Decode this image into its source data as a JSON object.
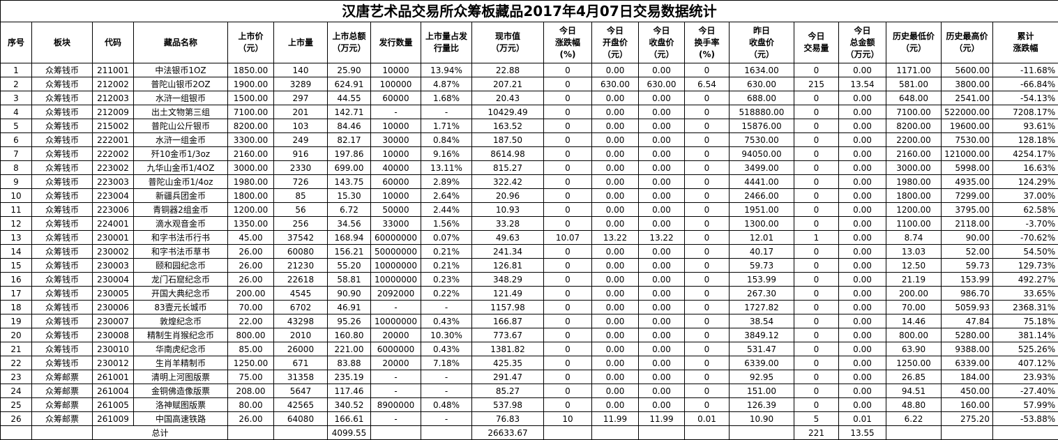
{
  "title": "汉唐艺术品交易所众筹板藏品2017年4月07日交易数据统计",
  "headers": [
    [
      "序号"
    ],
    [
      "板块"
    ],
    [
      "代码"
    ],
    [
      "藏品名称"
    ],
    [
      "上市价",
      "（元）"
    ],
    [
      "上市量"
    ],
    [
      "上市总额",
      "（万元）"
    ],
    [
      "发行数量"
    ],
    [
      "上市量占发",
      "行量比"
    ],
    [
      "现市值",
      "（万元）"
    ],
    [
      "今日",
      "涨跌幅",
      "(%)"
    ],
    [
      "今日",
      "开盘价",
      "（元）"
    ],
    [
      "今日",
      "收盘价",
      "（元）"
    ],
    [
      "今日",
      "换手率",
      "(%)"
    ],
    [
      "昨日",
      "收盘价",
      "（元）"
    ],
    [
      "今日",
      "交易量"
    ],
    [
      "今日",
      "总金额",
      "（万元）"
    ],
    [
      "历史最低价",
      "（元）"
    ],
    [
      "历史最高价",
      "（元）"
    ],
    [
      "累计",
      "涨跌幅"
    ]
  ],
  "rows": [
    [
      "1",
      "众筹钱币",
      "211001",
      "中法银币1OZ",
      "1850.00",
      "140",
      "25.90",
      "10000",
      "13.94%",
      "22.88",
      "0",
      "0.00",
      "0.00",
      "0",
      "1634.00",
      "0",
      "0.00",
      "1171.00",
      "5600.00",
      "-11.68%"
    ],
    [
      "2",
      "众筹钱币",
      "212002",
      "普陀山银币2OZ",
      "1900.00",
      "3289",
      "624.91",
      "100000",
      "4.87%",
      "207.21",
      "0",
      "630.00",
      "630.00",
      "6.54",
      "630.00",
      "215",
      "13.54",
      "581.00",
      "3800.00",
      "-66.84%"
    ],
    [
      "3",
      "众筹钱币",
      "212003",
      "水浒一组银币",
      "1500.00",
      "297",
      "44.55",
      "60000",
      "1.68%",
      "20.43",
      "0",
      "0.00",
      "0.00",
      "0",
      "688.00",
      "0",
      "0.00",
      "648.00",
      "2541.00",
      "-54.13%"
    ],
    [
      "4",
      "众筹钱币",
      "212009",
      "出土文物第三组",
      "7100.00",
      "201",
      "142.71",
      "-",
      "-",
      "10429.49",
      "0",
      "0.00",
      "0.00",
      "0",
      "518880.00",
      "0",
      "0.00",
      "7100.00",
      "522000.00",
      "7208.17%"
    ],
    [
      "5",
      "众筹钱币",
      "215002",
      "普陀山公斤银币",
      "8200.00",
      "103",
      "84.46",
      "10000",
      "1.71%",
      "163.52",
      "0",
      "0.00",
      "0.00",
      "0",
      "15876.00",
      "0",
      "0.00",
      "8200.00",
      "19600.00",
      "93.61%"
    ],
    [
      "6",
      "众筹钱币",
      "222001",
      "水浒一组金币",
      "3300.00",
      "249",
      "82.17",
      "30000",
      "0.84%",
      "187.50",
      "0",
      "0.00",
      "0.00",
      "0",
      "7530.00",
      "0",
      "0.00",
      "2200.00",
      "7530.00",
      "128.18%"
    ],
    [
      "7",
      "众筹钱币",
      "222002",
      "歼10金币1/3oz",
      "2160.00",
      "916",
      "197.86",
      "10000",
      "9.16%",
      "8614.98",
      "0",
      "0.00",
      "0.00",
      "0",
      "94050.00",
      "0",
      "0.00",
      "2160.00",
      "121000.00",
      "4254.17%"
    ],
    [
      "8",
      "众筹钱币",
      "223002",
      "九华山金币1/4OZ",
      "3000.00",
      "2330",
      "699.00",
      "40000",
      "13.11%",
      "815.27",
      "0",
      "0.00",
      "0.00",
      "0",
      "3499.00",
      "0",
      "0.00",
      "3000.00",
      "5998.00",
      "16.63%"
    ],
    [
      "9",
      "众筹钱币",
      "223003",
      "普陀山金币1/4oz",
      "1980.00",
      "726",
      "143.75",
      "60000",
      "2.89%",
      "322.42",
      "0",
      "0.00",
      "0.00",
      "0",
      "4441.00",
      "0",
      "0.00",
      "1980.00",
      "4935.00",
      "124.29%"
    ],
    [
      "10",
      "众筹钱币",
      "223004",
      "新疆兵团金币",
      "1800.00",
      "85",
      "15.30",
      "10000",
      "2.64%",
      "20.96",
      "0",
      "0.00",
      "0.00",
      "0",
      "2466.00",
      "0",
      "0.00",
      "1800.00",
      "7299.00",
      "37.00%"
    ],
    [
      "11",
      "众筹钱币",
      "223006",
      "青铜器2组金币",
      "1200.00",
      "56",
      "6.72",
      "50000",
      "2.44%",
      "10.93",
      "0",
      "0.00",
      "0.00",
      "0",
      "1951.00",
      "0",
      "0.00",
      "1200.00",
      "3795.00",
      "62.58%"
    ],
    [
      "12",
      "众筹钱币",
      "224001",
      "滴水观音金币",
      "1350.00",
      "256",
      "34.56",
      "33000",
      "1.56%",
      "33.28",
      "0",
      "0.00",
      "0.00",
      "0",
      "1300.00",
      "0",
      "0.00",
      "1100.00",
      "2118.00",
      "-3.70%"
    ],
    [
      "13",
      "众筹钱币",
      "230001",
      "和字书法币行书",
      "45.00",
      "37542",
      "168.94",
      "60000000",
      "0.07%",
      "49.63",
      "10.07",
      "13.22",
      "13.22",
      "0",
      "12.01",
      "1",
      "0.00",
      "8.74",
      "90.00",
      "-70.62%"
    ],
    [
      "14",
      "众筹钱币",
      "230002",
      "和字书法币草书",
      "26.00",
      "60080",
      "156.21",
      "50000000",
      "0.21%",
      "241.34",
      "0",
      "0.00",
      "0.00",
      "0",
      "40.17",
      "0",
      "0.00",
      "13.03",
      "52.00",
      "54.50%"
    ],
    [
      "15",
      "众筹钱币",
      "230003",
      "颐和园纪念币",
      "26.00",
      "21230",
      "55.20",
      "10000000",
      "0.21%",
      "126.81",
      "0",
      "0.00",
      "0.00",
      "0",
      "59.73",
      "0",
      "0.00",
      "12.50",
      "59.73",
      "129.73%"
    ],
    [
      "16",
      "众筹钱币",
      "230004",
      "龙门石窟纪念币",
      "26.00",
      "22618",
      "58.81",
      "10000000",
      "0.23%",
      "348.29",
      "0",
      "0.00",
      "0.00",
      "0",
      "153.99",
      "0",
      "0.00",
      "21.19",
      "153.99",
      "492.27%"
    ],
    [
      "17",
      "众筹钱币",
      "230005",
      "开国大典纪念币",
      "200.00",
      "4545",
      "90.90",
      "2092000",
      "0.22%",
      "121.49",
      "0",
      "0.00",
      "0.00",
      "0",
      "267.30",
      "0",
      "0.00",
      "200.00",
      "986.70",
      "33.65%"
    ],
    [
      "18",
      "众筹钱币",
      "230006",
      "83壹元长城币",
      "70.00",
      "6702",
      "46.91",
      "-",
      "-",
      "1157.98",
      "0",
      "0.00",
      "0.00",
      "0",
      "1727.82",
      "0",
      "0.00",
      "70.00",
      "5059.93",
      "2368.31%"
    ],
    [
      "19",
      "众筹钱币",
      "230007",
      "敦煌纪念币",
      "22.00",
      "43298",
      "95.26",
      "10000000",
      "0.43%",
      "166.87",
      "0",
      "0.00",
      "0.00",
      "0",
      "38.54",
      "0",
      "0.00",
      "14.46",
      "47.84",
      "75.18%"
    ],
    [
      "20",
      "众筹钱币",
      "230008",
      "精制生肖猴纪念币",
      "800.00",
      "2010",
      "160.80",
      "20000",
      "10.30%",
      "773.67",
      "0",
      "0.00",
      "0.00",
      "0",
      "3849.12",
      "0",
      "0.00",
      "800.00",
      "5280.00",
      "381.14%"
    ],
    [
      "21",
      "众筹钱币",
      "230010",
      "华南虎纪念币",
      "85.00",
      "26000",
      "221.00",
      "6000000",
      "0.43%",
      "1381.82",
      "0",
      "0.00",
      "0.00",
      "0",
      "531.47",
      "0",
      "0.00",
      "63.90",
      "9388.00",
      "525.26%"
    ],
    [
      "22",
      "众筹钱币",
      "230012",
      "生肖羊精制币",
      "1250.00",
      "671",
      "83.88",
      "20000",
      "7.18%",
      "425.35",
      "0",
      "0.00",
      "0.00",
      "0",
      "6339.00",
      "0",
      "0.00",
      "1250.00",
      "6339.00",
      "407.12%"
    ],
    [
      "23",
      "众筹邮票",
      "261001",
      "清明上河图版票",
      "75.00",
      "31358",
      "235.19",
      "-",
      "-",
      "291.47",
      "0",
      "0.00",
      "0.00",
      "0",
      "92.95",
      "0",
      "0.00",
      "26.85",
      "184.00",
      "23.93%"
    ],
    [
      "24",
      "众筹邮票",
      "261004",
      "金铜佛造像版票",
      "208.00",
      "5647",
      "117.46",
      "-",
      "-",
      "85.27",
      "0",
      "0.00",
      "0.00",
      "0",
      "151.00",
      "0",
      "0.00",
      "94.51",
      "450.00",
      "-27.40%"
    ],
    [
      "25",
      "众筹邮票",
      "261005",
      "洛神赋图版票",
      "80.00",
      "42565",
      "340.52",
      "8900000",
      "0.48%",
      "537.98",
      "0",
      "0.00",
      "0.00",
      "0",
      "126.39",
      "0",
      "0.00",
      "48.80",
      "160.00",
      "57.99%"
    ],
    [
      "26",
      "众筹邮票",
      "261009",
      "中国高速铁路",
      "26.00",
      "64080",
      "166.61",
      "-",
      "-",
      "76.83",
      "10",
      "11.99",
      "11.99",
      "0.01",
      "10.90",
      "5",
      "0.01",
      "6.22",
      "275.20",
      "-53.88%"
    ]
  ],
  "total": {
    "label": "总计",
    "market_total": "4099.55",
    "market_value": "26633.67",
    "volume": "221",
    "amount": "13.55"
  }
}
